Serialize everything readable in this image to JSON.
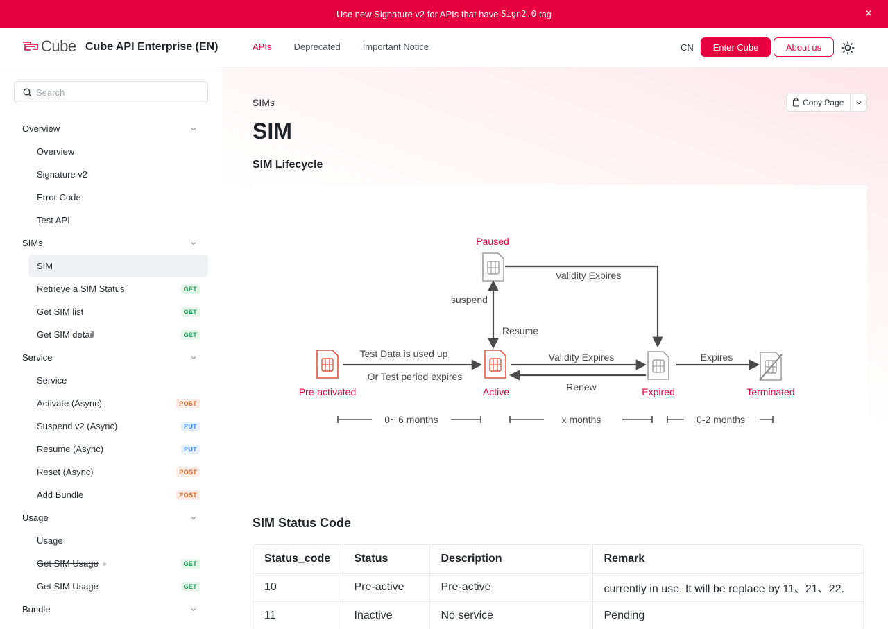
{
  "banner": {
    "text_before": "Use new Signature v2 for APIs that have",
    "code": "Sign2.0",
    "text_after": "tag",
    "close": "✕"
  },
  "header": {
    "logo_text": "Cube",
    "title": "Cube API Enterprise (EN)",
    "nav": [
      "APIs",
      "Deprecated",
      "Important Notice"
    ],
    "lang": "CN",
    "enter_button": "Enter Cube",
    "about_button": "About us"
  },
  "sidebar": {
    "search_placeholder": "Search",
    "groups": [
      {
        "label": "Overview",
        "items": [
          {
            "label": "Overview"
          },
          {
            "label": "Signature v2"
          },
          {
            "label": "Error Code"
          },
          {
            "label": "Test API"
          }
        ]
      },
      {
        "label": "SIMs",
        "items": [
          {
            "label": "SIM"
          },
          {
            "label": "Retrieve a SIM Status",
            "method": "GET"
          },
          {
            "label": "Get SIM list",
            "method": "GET"
          },
          {
            "label": "Get SIM detail",
            "method": "GET"
          }
        ]
      },
      {
        "label": "Service",
        "items": [
          {
            "label": "Service"
          },
          {
            "label": "Activate (Async)",
            "method": "POST"
          },
          {
            "label": "Suspend v2 (Async)",
            "method": "PUT"
          },
          {
            "label": "Resume (Async)",
            "method": "PUT"
          },
          {
            "label": "Reset (Async)",
            "method": "POST"
          },
          {
            "label": "Add Bundle",
            "method": "POST"
          }
        ]
      },
      {
        "label": "Usage",
        "items": [
          {
            "label": "Usage"
          },
          {
            "label": "Get SIM Usage",
            "method": "GET"
          },
          {
            "label": "Get SIM Usage",
            "method": "GET"
          }
        ]
      },
      {
        "label": "Bundle",
        "items": []
      }
    ]
  },
  "main": {
    "breadcrumb": "SIMs",
    "copy_page": "Copy Page",
    "title": "SIM",
    "lifecycle_heading": "SIM Lifecycle",
    "diagram": {
      "states": {
        "paused": "Paused",
        "preactivated": "Pre-activated",
        "active": "Active",
        "expired": "Expired",
        "terminated": "Terminated"
      },
      "labels": {
        "validity_expires_top": "Validity Expires",
        "suspend": "suspend",
        "resume": "Resume",
        "test_data": "Test Data is used up",
        "test_period": "Or Test period expires",
        "validity_expires_mid": "Validity Expires",
        "renew": "Renew",
        "expires": "Expires"
      },
      "durations": [
        "0~ 6 months",
        "x months",
        "0-2 months"
      ],
      "colors": {
        "accent": "#e5003f",
        "sim_red": "#e2553f",
        "sim_gray": "#9a9a9a",
        "arrow": "#4a4a4a"
      }
    },
    "status_heading": "SIM Status Code",
    "table": {
      "headers": [
        "Status_code",
        "Status",
        "Description",
        "Remark"
      ],
      "rows": [
        [
          "10",
          "Pre-active",
          "Pre-active",
          "currently in use. It will be replace by 11、21、22."
        ],
        [
          "11",
          "Inactive",
          "No service",
          "Pending"
        ]
      ]
    }
  }
}
